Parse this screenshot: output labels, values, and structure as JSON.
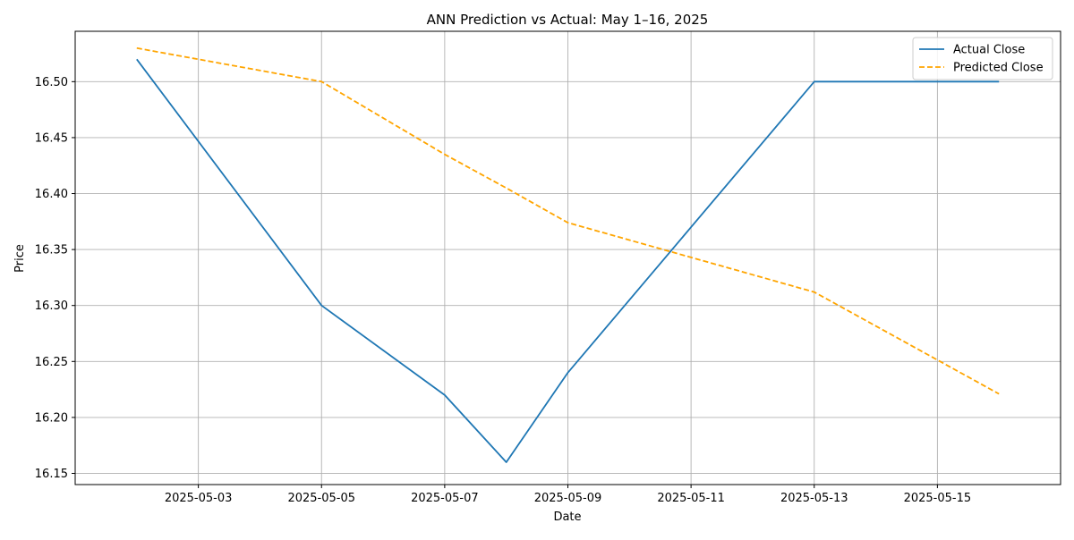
{
  "chart_data": {
    "type": "line",
    "title": "ANN Prediction vs Actual: May 1–16, 2025",
    "xlabel": "Date",
    "ylabel": "Price",
    "x_range": [
      "2025-05-01",
      "2025-05-17"
    ],
    "ylim": [
      16.14,
      16.545
    ],
    "grid": true,
    "legend_position": "top-right",
    "x_tick_labels": [
      "2025-05-03",
      "2025-05-05",
      "2025-05-07",
      "2025-05-09",
      "2025-05-11",
      "2025-05-13",
      "2025-05-15"
    ],
    "y_tick_labels": [
      "16.15",
      "16.20",
      "16.25",
      "16.30",
      "16.35",
      "16.40",
      "16.45",
      "16.50"
    ],
    "series": [
      {
        "name": "Actual Close",
        "color": "#1f77b4",
        "line_style": "solid",
        "points": [
          {
            "x": "2025-05-02",
            "y": 16.52
          },
          {
            "x": "2025-05-05",
            "y": 16.3
          },
          {
            "x": "2025-05-07",
            "y": 16.22
          },
          {
            "x": "2025-05-08",
            "y": 16.16
          },
          {
            "x": "2025-05-09",
            "y": 16.24
          },
          {
            "x": "2025-05-13",
            "y": 16.5
          },
          {
            "x": "2025-05-16",
            "y": 16.5
          }
        ]
      },
      {
        "name": "Predicted Close",
        "color": "#ffa500",
        "line_style": "dashed",
        "points": [
          {
            "x": "2025-05-02",
            "y": 16.53
          },
          {
            "x": "2025-05-05",
            "y": 16.5
          },
          {
            "x": "2025-05-07",
            "y": 16.435
          },
          {
            "x": "2025-05-08",
            "y": 16.405
          },
          {
            "x": "2025-05-09",
            "y": 16.374
          },
          {
            "x": "2025-05-13",
            "y": 16.312
          },
          {
            "x": "2025-05-16",
            "y": 16.221
          }
        ]
      }
    ]
  }
}
